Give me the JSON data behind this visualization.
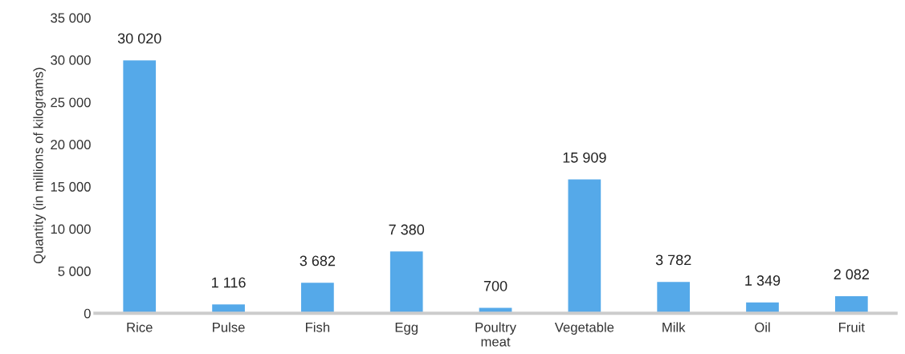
{
  "chart_data": {
    "type": "bar",
    "ylabel": "Quantity (in millions of kilograms)",
    "categories": [
      "Rice",
      "Pulse",
      "Fish",
      "Egg",
      "Poultry\nmeat",
      "Vegetable",
      "Milk",
      "Oil",
      "Fruit"
    ],
    "values": [
      30020,
      1116,
      3682,
      7380,
      700,
      15909,
      3782,
      1349,
      2082
    ],
    "value_labels": [
      "30 020",
      "1 116",
      "3 682",
      "7 380",
      "700",
      "15 909",
      "3 782",
      "1 349",
      "2 082"
    ],
    "color": "#55a9e9",
    "ylim": [
      0,
      35000
    ],
    "yticks": [
      0,
      {
        "value": 5000,
        "label": "5 000"
      },
      {
        "value": 10000,
        "label": "10 000"
      },
      {
        "value": 15000,
        "label": "15 000"
      },
      {
        "value": 20000,
        "label": "20 000"
      },
      {
        "value": 25000,
        "label": "25 000"
      },
      {
        "value": 30000,
        "label": "30 000"
      },
      {
        "value": 35000,
        "label": "35 000"
      }
    ],
    "grid": false
  }
}
